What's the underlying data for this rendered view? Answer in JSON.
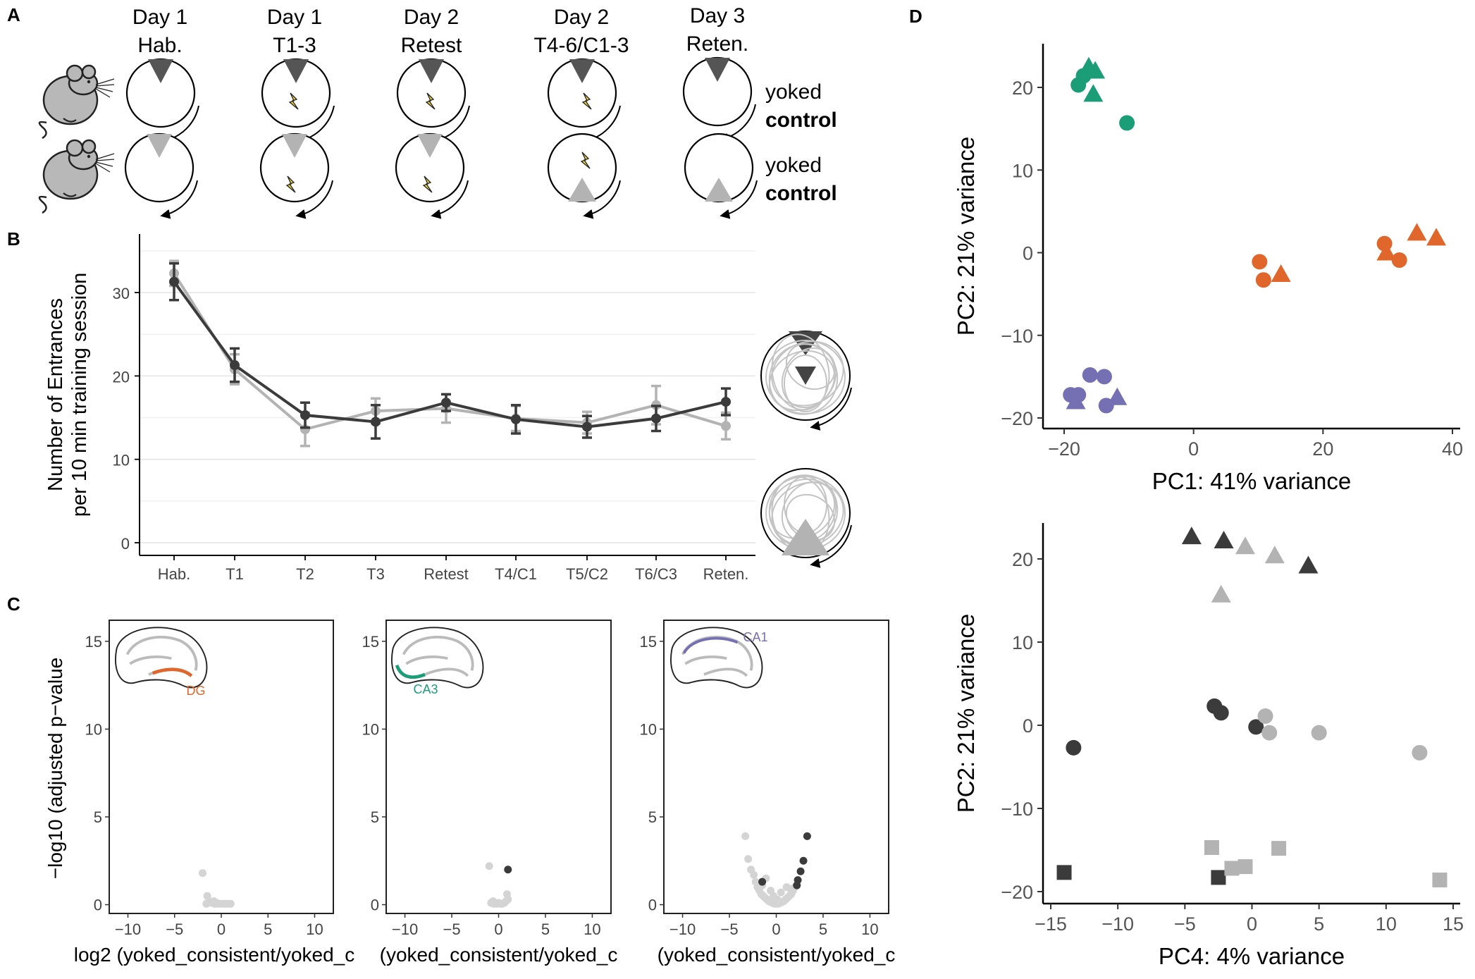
{
  "panels": {
    "a": "A",
    "b": "B",
    "c": "C",
    "d": "D"
  },
  "panelA": {
    "headers": [
      {
        "day": "Day 1",
        "session": "Hab."
      },
      {
        "day": "Day 1",
        "session": "T1-3"
      },
      {
        "day": "Day 2",
        "session": "Retest"
      },
      {
        "day": "Day 2",
        "session": "T4-6/C1-3"
      },
      {
        "day": "Day 3",
        "session": "Reten."
      }
    ],
    "rows": [
      {
        "prefix": "yoked",
        "suffix": "control"
      },
      {
        "prefix": "yoked",
        "suffix": "control"
      }
    ]
  },
  "colors": {
    "dark": "#3b3b3b",
    "light": "#b3b3b3",
    "dg": "#e0662b",
    "ca3": "#1b9e77",
    "ca1": "#7570b3",
    "shock": "#f2d230"
  },
  "chart_data": [
    {
      "id": "B",
      "type": "line",
      "categories": [
        "Hab.",
        "T1",
        "T2",
        "T3",
        "Retest",
        "T4/C1",
        "T5/C2",
        "T6/C3",
        "Reten."
      ],
      "ylabel": "Number of Entrances\nper 10 min training session",
      "ylim": [
        0,
        35
      ],
      "yticks": [
        0,
        10,
        20,
        30
      ],
      "grid": true,
      "series": [
        {
          "color": "#b3b3b3",
          "values": [
            32.3,
            20.8,
            13.6,
            15.8,
            16.1,
            14.9,
            14.4,
            16.5,
            14.0
          ],
          "err": [
            1.5,
            1.8,
            2.0,
            1.5,
            1.7,
            1.5,
            1.3,
            2.3,
            1.6
          ]
        },
        {
          "color": "#3b3b3b",
          "values": [
            31.3,
            21.3,
            15.3,
            14.5,
            16.8,
            14.8,
            13.9,
            14.9,
            16.9
          ],
          "err": [
            2.2,
            2.0,
            1.5,
            2.0,
            1.0,
            1.7,
            1.3,
            1.5,
            1.6
          ]
        }
      ]
    },
    {
      "id": "C1",
      "type": "scatter",
      "region": "DG",
      "xlabel": "log2 (yoked_consistent/yoked_c",
      "ylabel": "−log10 (adjusted p−value",
      "xlim": [
        -12,
        12
      ],
      "ylim": [
        -0.5,
        16.2
      ],
      "xticks": [
        -10,
        -5,
        0,
        5,
        10
      ],
      "yticks": [
        0,
        5,
        10,
        15
      ],
      "points_light": [
        [
          -2,
          1.8
        ],
        [
          -1.5,
          0.5
        ],
        [
          -1.3,
          0.2
        ],
        [
          -1,
          0.1
        ],
        [
          -0.7,
          0.05
        ],
        [
          -0.5,
          0.1
        ],
        [
          -0.3,
          0.05
        ],
        [
          0,
          0.05
        ],
        [
          0.3,
          0.05
        ],
        [
          0.5,
          0.05
        ],
        [
          0.8,
          0.05
        ],
        [
          1.0,
          0.05
        ],
        [
          -1.6,
          0.05
        ],
        [
          -0.8,
          0.2
        ]
      ],
      "points_dark": []
    },
    {
      "id": "C2",
      "type": "scatter",
      "region": "CA3",
      "xlabel": "(yoked_consistent/yoked_c",
      "xlim": [
        -12,
        12
      ],
      "ylim": [
        -0.5,
        16.2
      ],
      "xticks": [
        -10,
        -5,
        0,
        5,
        10
      ],
      "yticks": [
        0,
        5,
        10,
        15
      ],
      "points_light": [
        [
          -1.0,
          2.2
        ],
        [
          -0.8,
          0.1
        ],
        [
          -0.5,
          0.05
        ],
        [
          -0.2,
          0.05
        ],
        [
          0,
          0.1
        ],
        [
          0.2,
          0.05
        ],
        [
          0.4,
          0.05
        ],
        [
          0.6,
          0.1
        ],
        [
          0.8,
          0.2
        ],
        [
          1.0,
          0.3
        ],
        [
          0.9,
          0.6
        ],
        [
          -0.6,
          0.2
        ]
      ],
      "points_dark": [
        [
          1.0,
          2.0
        ]
      ]
    },
    {
      "id": "C3",
      "type": "scatter",
      "region": "CA1",
      "xlabel": "(yoked_consistent/yoked_c",
      "xlim": [
        -12,
        12
      ],
      "ylim": [
        -0.5,
        16.2
      ],
      "xticks": [
        -10,
        -5,
        0,
        5,
        10
      ],
      "yticks": [
        0,
        5,
        10,
        15
      ],
      "points_light": [
        [
          -3.3,
          3.9
        ],
        [
          -3.0,
          2.6
        ],
        [
          -2.7,
          2.0
        ],
        [
          -2.4,
          1.7
        ],
        [
          -2.2,
          1.3
        ],
        [
          -2.0,
          1.0
        ],
        [
          -1.8,
          0.8
        ],
        [
          -1.6,
          0.6
        ],
        [
          -1.4,
          0.5
        ],
        [
          -1.2,
          0.4
        ],
        [
          -1.0,
          0.3
        ],
        [
          -0.8,
          0.2
        ],
        [
          -0.6,
          0.15
        ],
        [
          -0.4,
          0.1
        ],
        [
          -0.2,
          0.05
        ],
        [
          0,
          0.05
        ],
        [
          0.2,
          0.05
        ],
        [
          0.4,
          0.1
        ],
        [
          0.6,
          0.15
        ],
        [
          0.8,
          0.2
        ],
        [
          1.0,
          0.3
        ],
        [
          1.2,
          0.4
        ],
        [
          1.4,
          0.5
        ],
        [
          1.6,
          0.6
        ],
        [
          1.8,
          0.8
        ],
        [
          2.0,
          1.0
        ],
        [
          -1.1,
          1.5
        ],
        [
          -0.6,
          0.8
        ],
        [
          0.5,
          0.7
        ],
        [
          1.1,
          1.0
        ],
        [
          -0.3,
          0.5
        ],
        [
          0.1,
          0.3
        ],
        [
          -1.5,
          1.1
        ],
        [
          1.5,
          0.9
        ]
      ],
      "points_dark": [
        [
          -1.5,
          1.3
        ],
        [
          2.3,
          1.4
        ],
        [
          2.6,
          1.9
        ],
        [
          2.9,
          2.5
        ],
        [
          3.3,
          3.9
        ],
        [
          2.2,
          1.1
        ]
      ]
    },
    {
      "id": "D1",
      "type": "scatter",
      "xlabel": "PC1: 41% variance",
      "ylabel": "PC2: 21% variance",
      "xlim": [
        -21,
        40
      ],
      "ylim": [
        -21,
        25
      ],
      "xticks": [
        -20,
        0,
        20,
        40
      ],
      "yticks": [
        -20,
        -10,
        0,
        10,
        20
      ],
      "points": [
        {
          "x": -17.8,
          "y": 20.3,
          "shape": "circle",
          "color": "#1b9e77"
        },
        {
          "x": -17.0,
          "y": 21.4,
          "shape": "circle",
          "color": "#1b9e77"
        },
        {
          "x": -16.2,
          "y": 22.5,
          "shape": "triangle",
          "color": "#1b9e77"
        },
        {
          "x": -15.2,
          "y": 22.0,
          "shape": "triangle",
          "color": "#1b9e77"
        },
        {
          "x": -15.5,
          "y": 19.2,
          "shape": "triangle",
          "color": "#1b9e77"
        },
        {
          "x": -10.3,
          "y": 15.7,
          "shape": "circle",
          "color": "#1b9e77"
        },
        {
          "x": 10.2,
          "y": -1.1,
          "shape": "circle",
          "color": "#e0662b"
        },
        {
          "x": 10.8,
          "y": -3.3,
          "shape": "circle",
          "color": "#e0662b"
        },
        {
          "x": 13.5,
          "y": -2.6,
          "shape": "triangle",
          "color": "#e0662b"
        },
        {
          "x": 29.5,
          "y": 1.1,
          "shape": "circle",
          "color": "#e0662b"
        },
        {
          "x": 29.8,
          "y": 0.0,
          "shape": "triangle",
          "color": "#e0662b"
        },
        {
          "x": 31.8,
          "y": -0.9,
          "shape": "circle",
          "color": "#e0662b"
        },
        {
          "x": 34.5,
          "y": 2.4,
          "shape": "triangle",
          "color": "#e0662b"
        },
        {
          "x": 37.5,
          "y": 1.8,
          "shape": "triangle",
          "color": "#e0662b"
        },
        {
          "x": -19.0,
          "y": -17.2,
          "shape": "circle",
          "color": "#7570b3"
        },
        {
          "x": -17.8,
          "y": -17.2,
          "shape": "circle",
          "color": "#7570b3"
        },
        {
          "x": -18.2,
          "y": -18.0,
          "shape": "triangle",
          "color": "#7570b3"
        },
        {
          "x": -16.0,
          "y": -14.8,
          "shape": "circle",
          "color": "#7570b3"
        },
        {
          "x": -13.8,
          "y": -15.0,
          "shape": "circle",
          "color": "#7570b3"
        },
        {
          "x": -13.5,
          "y": -18.5,
          "shape": "circle",
          "color": "#7570b3"
        },
        {
          "x": -11.8,
          "y": -17.5,
          "shape": "triangle",
          "color": "#7570b3"
        }
      ]
    },
    {
      "id": "D2",
      "type": "scatter",
      "xlabel": "PC4: 4% variance",
      "ylabel": "PC2: 21% variance",
      "xlim": [
        -15.8,
        15.5
      ],
      "ylim": [
        -21,
        25
      ],
      "xticks": [
        -15,
        -10,
        -5,
        0,
        5,
        10,
        15
      ],
      "yticks": [
        -20,
        -10,
        0,
        10,
        20
      ],
      "points": [
        {
          "x": -4.5,
          "y": 22.7,
          "shape": "triangle",
          "color": "#3b3b3b"
        },
        {
          "x": -2.1,
          "y": 22.2,
          "shape": "triangle",
          "color": "#3b3b3b"
        },
        {
          "x": 4.2,
          "y": 19.2,
          "shape": "triangle",
          "color": "#3b3b3b"
        },
        {
          "x": -0.5,
          "y": 21.5,
          "shape": "triangle",
          "color": "#b3b3b3"
        },
        {
          "x": 1.7,
          "y": 20.4,
          "shape": "triangle",
          "color": "#b3b3b3"
        },
        {
          "x": -2.3,
          "y": 15.7,
          "shape": "triangle",
          "color": "#b3b3b3"
        },
        {
          "x": -2.8,
          "y": 2.3,
          "shape": "circle",
          "color": "#3b3b3b"
        },
        {
          "x": -2.3,
          "y": 1.5,
          "shape": "circle",
          "color": "#3b3b3b"
        },
        {
          "x": 0.3,
          "y": -0.2,
          "shape": "circle",
          "color": "#3b3b3b"
        },
        {
          "x": -13.3,
          "y": -2.7,
          "shape": "circle",
          "color": "#3b3b3b"
        },
        {
          "x": 1.0,
          "y": 1.1,
          "shape": "circle",
          "color": "#b3b3b3"
        },
        {
          "x": 1.3,
          "y": -0.9,
          "shape": "circle",
          "color": "#b3b3b3"
        },
        {
          "x": 5.0,
          "y": -0.9,
          "shape": "circle",
          "color": "#b3b3b3"
        },
        {
          "x": 12.5,
          "y": -3.3,
          "shape": "circle",
          "color": "#b3b3b3"
        },
        {
          "x": -14.0,
          "y": -17.7,
          "shape": "square",
          "color": "#3b3b3b"
        },
        {
          "x": -2.5,
          "y": -18.3,
          "shape": "square",
          "color": "#3b3b3b"
        },
        {
          "x": -3.0,
          "y": -14.7,
          "shape": "square",
          "color": "#b3b3b3"
        },
        {
          "x": -1.5,
          "y": -17.2,
          "shape": "square",
          "color": "#b3b3b3"
        },
        {
          "x": -0.5,
          "y": -17.0,
          "shape": "square",
          "color": "#b3b3b3"
        },
        {
          "x": 2.0,
          "y": -14.8,
          "shape": "square",
          "color": "#b3b3b3"
        },
        {
          "x": 14.0,
          "y": -18.6,
          "shape": "square",
          "color": "#b3b3b3"
        }
      ]
    }
  ]
}
